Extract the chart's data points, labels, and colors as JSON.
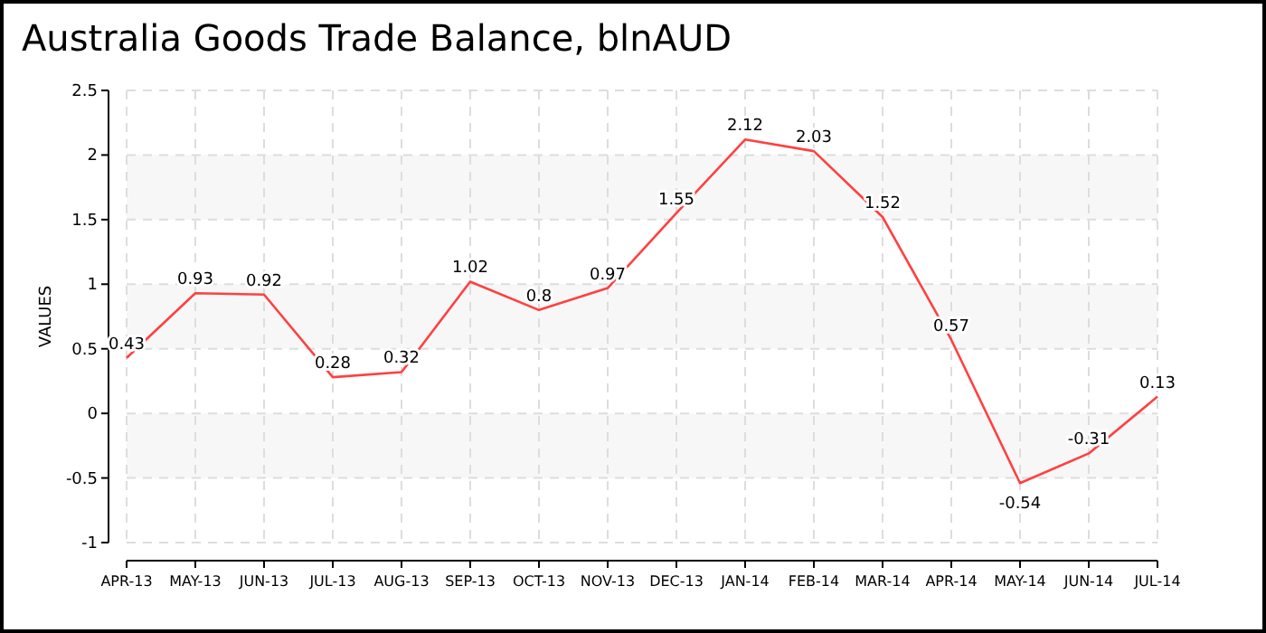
{
  "chart_data": {
    "type": "line",
    "title": "Australia Goods Trade Balance, blnAUD",
    "ylabel": "VALUES",
    "categories": [
      "APR-13",
      "MAY-13",
      "JUN-13",
      "JUL-13",
      "AUG-13",
      "SEP-13",
      "OCT-13",
      "NOV-13",
      "DEC-13",
      "JAN-14",
      "FEB-14",
      "MAR-14",
      "APR-14",
      "MAY-14",
      "JUN-14",
      "JUL-14"
    ],
    "series": [
      {
        "color": "#ff4040",
        "values": [
          0.43,
          0.93,
          0.92,
          0.28,
          0.32,
          1.02,
          0.8,
          0.97,
          1.55,
          2.12,
          2.03,
          1.52,
          0.57,
          -0.54,
          -0.31,
          0.13
        ]
      }
    ],
    "ylim": [
      -1,
      2.5
    ],
    "yticks": [
      -1,
      -0.5,
      0,
      0.5,
      1,
      1.5,
      2,
      2.5
    ],
    "grid": true,
    "data_labels": true,
    "marker": "none",
    "line_style": "solid"
  }
}
